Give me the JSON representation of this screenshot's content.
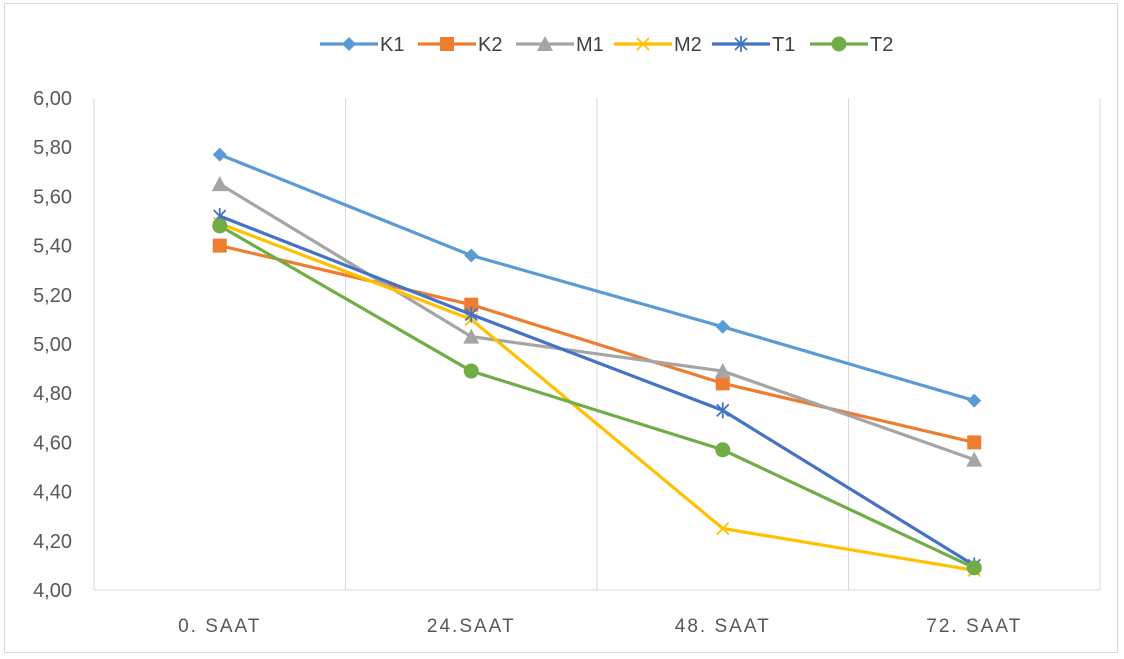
{
  "chart_data": {
    "type": "line",
    "title": "",
    "xlabel": "",
    "ylabel": "",
    "categories": [
      "0. SAAT",
      "24.SAAT",
      "48. SAAT",
      "72. SAAT"
    ],
    "ylim": [
      4.0,
      6.0
    ],
    "yticks": [
      "4,00",
      "4,20",
      "4,40",
      "4,60",
      "4,80",
      "5,00",
      "5,20",
      "5,40",
      "5,60",
      "5,80",
      "6,00"
    ],
    "grid": "vertical",
    "legend": "top",
    "series": [
      {
        "name": "K1",
        "color": "#5b9bd5",
        "marker": "diamond",
        "values": [
          5.77,
          5.36,
          5.07,
          4.77
        ]
      },
      {
        "name": "K2",
        "color": "#ed7d31",
        "marker": "square",
        "values": [
          5.4,
          5.16,
          4.84,
          4.6
        ]
      },
      {
        "name": "M1",
        "color": "#a5a5a5",
        "marker": "triangle",
        "values": [
          5.65,
          5.03,
          4.89,
          4.53
        ]
      },
      {
        "name": "M2",
        "color": "#ffc000",
        "marker": "x",
        "values": [
          5.49,
          5.1,
          4.25,
          4.08
        ]
      },
      {
        "name": "T1",
        "color": "#4472c4",
        "marker": "star",
        "values": [
          5.52,
          5.12,
          4.73,
          4.1
        ]
      },
      {
        "name": "T2",
        "color": "#70ad47",
        "marker": "circle",
        "values": [
          5.48,
          4.89,
          4.57,
          4.09
        ]
      }
    ]
  }
}
